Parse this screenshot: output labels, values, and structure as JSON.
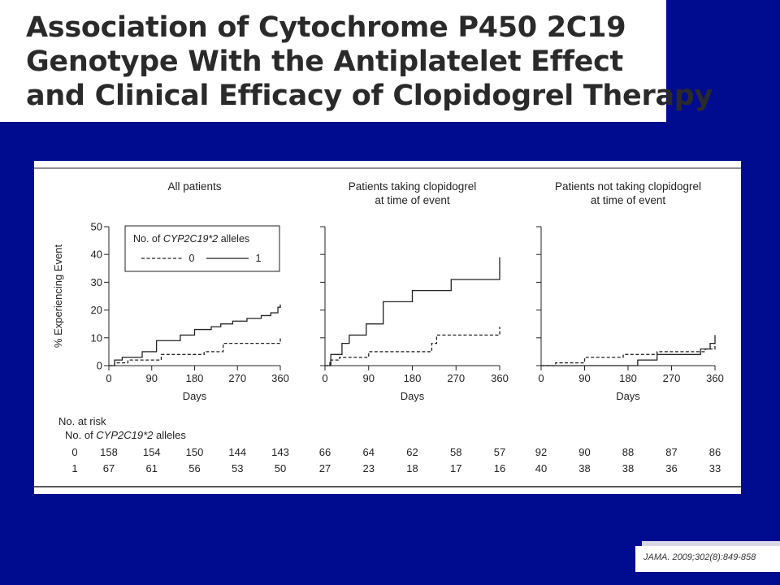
{
  "slide": {
    "title_lines": [
      "Association of Cytochrome P450 2C19",
      "Genotype With the Antiplatelet Effect",
      "and Clinical Efficacy of Clopidogrel Therapy"
    ],
    "citation": "JAMA. 2009;302(8):849-858",
    "colors": {
      "background": "#000c8f",
      "panel": "#ffffff",
      "ink": "#222222"
    }
  },
  "chart_data": [
    {
      "type": "line",
      "step": true,
      "title": "All patients",
      "xlabel": "Days",
      "ylabel": "% Experiencing Event",
      "xlim": [
        0,
        360
      ],
      "ylim": [
        0,
        50
      ],
      "xticks": [
        0,
        90,
        180,
        270,
        360
      ],
      "yticks": [
        0,
        10,
        20,
        30,
        40,
        50
      ],
      "legend": {
        "placement": "top-left",
        "title_prefix": "No. of ",
        "title_gene": "CYP2C19*2",
        "title_suffix": " alleles"
      },
      "series": [
        {
          "name": "0",
          "style": "dashed",
          "x": [
            0,
            12,
            40,
            110,
            200,
            240,
            360
          ],
          "y": [
            0,
            1,
            2,
            4,
            5,
            8,
            10
          ]
        },
        {
          "name": "1",
          "style": "solid",
          "x": [
            0,
            12,
            28,
            70,
            100,
            150,
            180,
            215,
            235,
            260,
            290,
            320,
            340,
            355,
            360
          ],
          "y": [
            0,
            2,
            3,
            5,
            9,
            11,
            13,
            14,
            15,
            16,
            17,
            18,
            19,
            21,
            22
          ]
        }
      ]
    },
    {
      "type": "line",
      "step": true,
      "title": "Patients taking clopidogrel\nat time of event",
      "xlabel": "Days",
      "ylabel": "",
      "xlim": [
        0,
        360
      ],
      "ylim": [
        0,
        50
      ],
      "xticks": [
        0,
        90,
        180,
        270,
        360
      ],
      "yticks": [
        0,
        10,
        20,
        30,
        40,
        50
      ],
      "series": [
        {
          "name": "0",
          "style": "dashed",
          "x": [
            0,
            10,
            30,
            90,
            220,
            230,
            360
          ],
          "y": [
            0,
            2,
            3,
            5,
            8,
            11,
            14
          ]
        },
        {
          "name": "1",
          "style": "solid",
          "x": [
            0,
            12,
            35,
            50,
            85,
            120,
            180,
            260,
            360
          ],
          "y": [
            0,
            4,
            8,
            11,
            15,
            23,
            27,
            31,
            39
          ]
        }
      ]
    },
    {
      "type": "line",
      "step": true,
      "title": "Patients not taking clopidogrel\nat time of event",
      "xlabel": "Days",
      "ylabel": "",
      "xlim": [
        0,
        360
      ],
      "ylim": [
        0,
        50
      ],
      "xticks": [
        0,
        90,
        180,
        270,
        360
      ],
      "yticks": [
        0,
        10,
        20,
        30,
        40,
        50
      ],
      "series": [
        {
          "name": "0",
          "style": "dashed",
          "x": [
            0,
            30,
            90,
            170,
            240,
            340,
            360
          ],
          "y": [
            0,
            1,
            3,
            4,
            5,
            6,
            8
          ]
        },
        {
          "name": "1",
          "style": "solid",
          "x": [
            0,
            200,
            240,
            330,
            350,
            360
          ],
          "y": [
            0,
            2,
            4,
            6,
            8,
            11
          ]
        }
      ]
    }
  ],
  "risk_table": {
    "heading": "No. at risk",
    "sub_prefix": "No. of ",
    "sub_gene": "CYP2C19*2",
    "sub_suffix": " alleles",
    "rows": [
      {
        "label": "0",
        "values": [
          [
            158,
            154,
            150,
            144,
            143
          ],
          [
            66,
            64,
            62,
            58,
            57
          ],
          [
            92,
            90,
            88,
            87,
            86
          ]
        ]
      },
      {
        "label": "1",
        "values": [
          [
            67,
            61,
            56,
            53,
            50
          ],
          [
            27,
            23,
            18,
            17,
            16
          ],
          [
            40,
            38,
            38,
            36,
            33
          ]
        ]
      }
    ]
  }
}
